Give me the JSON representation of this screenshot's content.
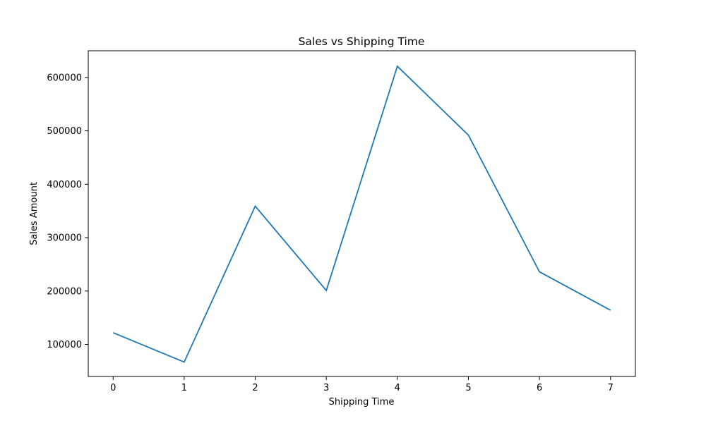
{
  "chart_data": {
    "type": "line",
    "title": "Sales vs Shipping Time",
    "xlabel": "Shipping Time",
    "ylabel": "Sales Amount",
    "x": [
      0,
      1,
      2,
      3,
      4,
      5,
      6,
      7
    ],
    "series": [
      {
        "values": [
          122000,
          67000,
          359000,
          201000,
          621000,
          492000,
          236000,
          164000
        ],
        "color": "#1f77b4"
      }
    ],
    "xlim": [
      -0.35,
      7.35
    ],
    "ylim": [
      40000,
      650000
    ],
    "xticks": [
      0,
      1,
      2,
      3,
      4,
      5,
      6,
      7
    ],
    "xtick_labels": [
      "0",
      "1",
      "2",
      "3",
      "4",
      "5",
      "6",
      "7"
    ],
    "yticks": [
      100000,
      200000,
      300000,
      400000,
      500000,
      600000
    ],
    "ytick_labels": [
      "100000",
      "200000",
      "300000",
      "400000",
      "500000",
      "600000"
    ],
    "grid": false,
    "legend": "none"
  }
}
